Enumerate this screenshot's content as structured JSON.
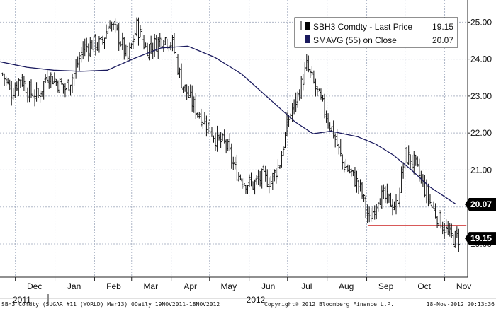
{
  "chart_data": {
    "type": "ohlc",
    "ylim": [
      18.1,
      25.6
    ],
    "y_ticks": [
      19,
      20,
      21,
      22,
      23,
      24,
      25
    ],
    "y_tick_labels": [
      "19.00",
      "20.00",
      "21.00",
      "22.00",
      "23.00",
      "24.00",
      "25.00"
    ],
    "x_months": [
      "Dec",
      "Jan",
      "Feb",
      "Mar",
      "Apr",
      "May",
      "Jun",
      "Jul",
      "Aug",
      "Sep",
      "Oct",
      "Nov"
    ],
    "x_years": [
      "2011",
      "2012"
    ],
    "grid": true,
    "legend_position": "top-right",
    "colors": {
      "price": "#111111",
      "smavg": "#1a1a5e",
      "support": "#cc2222",
      "grid": "#b0b8c8",
      "tag_bg": "#000000"
    },
    "series": [
      {
        "name": "SBH3 Comdty - Last Price",
        "last_value": "19.15",
        "points": [
          [
            "2011-11-21",
            23.6
          ],
          [
            "2011-11-28",
            23.1
          ],
          [
            "2011-12-05",
            23.5
          ],
          [
            "2011-12-12",
            23.1
          ],
          [
            "2011-12-19",
            23.0
          ],
          [
            "2011-12-26",
            23.6
          ],
          [
            "2012-01-02",
            23.4
          ],
          [
            "2012-01-09",
            23.2
          ],
          [
            "2012-01-16",
            23.6
          ],
          [
            "2012-01-23",
            24.3
          ],
          [
            "2012-01-30",
            24.4
          ],
          [
            "2012-02-06",
            24.4
          ],
          [
            "2012-02-13",
            25.0
          ],
          [
            "2012-02-20",
            24.6
          ],
          [
            "2012-02-27",
            24.0
          ],
          [
            "2012-03-05",
            24.9
          ],
          [
            "2012-03-12",
            24.3
          ],
          [
            "2012-03-19",
            24.4
          ],
          [
            "2012-03-26",
            24.6
          ],
          [
            "2012-04-02",
            24.4
          ],
          [
            "2012-04-09",
            23.4
          ],
          [
            "2012-04-16",
            22.9
          ],
          [
            "2012-04-23",
            22.5
          ],
          [
            "2012-04-30",
            22.2
          ],
          [
            "2012-05-07",
            21.8
          ],
          [
            "2012-05-14",
            21.7
          ],
          [
            "2012-05-21",
            21.0
          ],
          [
            "2012-05-28",
            20.7
          ],
          [
            "2012-06-04",
            20.6
          ],
          [
            "2012-06-11",
            20.8
          ],
          [
            "2012-06-18",
            20.7
          ],
          [
            "2012-06-25",
            21.2
          ],
          [
            "2012-07-02",
            22.4
          ],
          [
            "2012-07-09",
            23.0
          ],
          [
            "2012-07-16",
            23.8
          ],
          [
            "2012-07-23",
            23.2
          ],
          [
            "2012-07-30",
            22.6
          ],
          [
            "2012-08-06",
            22.0
          ],
          [
            "2012-08-13",
            21.2
          ],
          [
            "2012-08-20",
            20.9
          ],
          [
            "2012-08-27",
            20.5
          ],
          [
            "2012-09-03",
            19.6
          ],
          [
            "2012-09-10",
            20.3
          ],
          [
            "2012-09-17",
            20.2
          ],
          [
            "2012-09-24",
            20.0
          ],
          [
            "2012-10-01",
            21.4
          ],
          [
            "2012-10-08",
            21.2
          ],
          [
            "2012-10-15",
            20.6
          ],
          [
            "2012-10-22",
            20.0
          ],
          [
            "2012-10-29",
            19.6
          ],
          [
            "2012-11-05",
            19.2
          ],
          [
            "2012-11-12",
            19.15
          ]
        ]
      },
      {
        "name": "SMAVG (55) on Close",
        "last_value": "20.07",
        "points": [
          [
            "2011-11-19",
            23.93
          ],
          [
            "2011-12-10",
            23.78
          ],
          [
            "2011-12-31",
            23.7
          ],
          [
            "2012-01-21",
            23.67
          ],
          [
            "2012-02-11",
            23.7
          ],
          [
            "2012-03-03",
            24.02
          ],
          [
            "2012-03-24",
            24.3
          ],
          [
            "2012-04-14",
            24.35
          ],
          [
            "2012-05-05",
            24.05
          ],
          [
            "2012-05-26",
            23.6
          ],
          [
            "2012-06-16",
            22.95
          ],
          [
            "2012-07-07",
            22.3
          ],
          [
            "2012-07-21",
            21.98
          ],
          [
            "2012-08-04",
            22.05
          ],
          [
            "2012-08-25",
            21.9
          ],
          [
            "2012-09-08",
            21.7
          ],
          [
            "2012-09-22",
            21.4
          ],
          [
            "2012-10-06",
            21.0
          ],
          [
            "2012-10-20",
            20.55
          ],
          [
            "2012-11-10",
            20.07
          ]
        ]
      }
    ],
    "support_line": {
      "from": "2012-09-02",
      "to": "2012-11-18",
      "value": 19.5
    }
  },
  "footer": {
    "left": "SBH3 Comdty (SUGAR #11 (WORLD) Mar13) 0Daily 19NOV2011-18NOV2012",
    "center": "Copyright® 2012 Bloomberg Finance L.P.",
    "right": "18-Nov-2012 20:13:36"
  }
}
